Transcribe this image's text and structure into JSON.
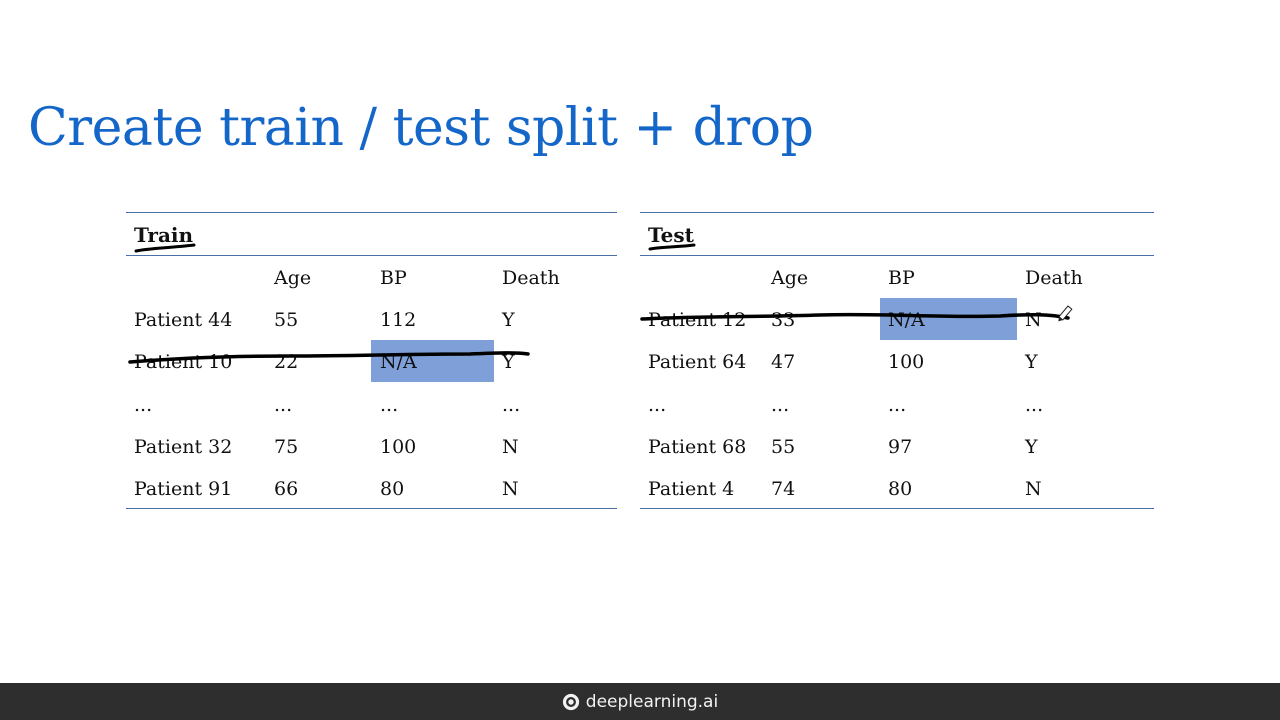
{
  "slide": {
    "title": "Create train / test split + drop"
  },
  "train": {
    "label": "Train",
    "columns": [
      "Age",
      "BP",
      "Death"
    ],
    "rows": [
      {
        "patient": "Patient 44",
        "age": "55",
        "bp": "112",
        "death": "Y"
      },
      {
        "patient": "Patient 10",
        "age": "22",
        "bp": "N/A",
        "death": "Y"
      },
      {
        "patient": "...",
        "age": "...",
        "bp": "...",
        "death": "..."
      },
      {
        "patient": "Patient 32",
        "age": "75",
        "bp": "100",
        "death": "N"
      },
      {
        "patient": "Patient 91",
        "age": "66",
        "bp": "80",
        "death": "N"
      }
    ]
  },
  "test": {
    "label": "Test",
    "columns": [
      "Age",
      "BP",
      "Death"
    ],
    "rows": [
      {
        "patient": "Patient 12",
        "age": "33",
        "bp": "N/A",
        "death": "N"
      },
      {
        "patient": "Patient 64",
        "age": "47",
        "bp": "100",
        "death": "Y"
      },
      {
        "patient": "...",
        "age": "...",
        "bp": "...",
        "death": "..."
      },
      {
        "patient": "Patient 68",
        "age": "55",
        "bp": "97",
        "death": "Y"
      },
      {
        "patient": "Patient 4",
        "age": "74",
        "bp": "80",
        "death": "N"
      }
    ]
  },
  "footer": {
    "brand": "deeplearning.ai",
    "logo_icon": "deeplearning-logo-icon"
  },
  "colors": {
    "title": "#1466c8",
    "highlight": "#7f9fd9",
    "rule": "#4a6fa8",
    "ink": "#000000",
    "footer_bg": "#2e2e2e"
  }
}
